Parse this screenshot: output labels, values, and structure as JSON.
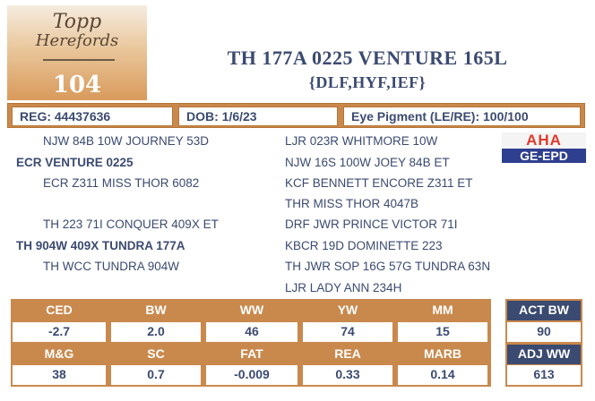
{
  "logo": {
    "line1": "Topp",
    "line2": "Herefords"
  },
  "lot_number": "104",
  "title": "TH 177A 0225 VENTURE 165L",
  "subtitle": "{DLF,HYF,IEF}",
  "info": {
    "reg": "REG: 44437636",
    "dob": "DOB: 1/6/23",
    "eye": "Eye Pigment (LE/RE): 100/100"
  },
  "pedigree": {
    "left": [
      "NJW 84B 10W JOURNEY 53D",
      "ECR VENTURE 0225",
      "ECR Z311 MISS THOR 6082",
      "TH 223 71I CONQUER 409X ET",
      "TH 904W 409X TUNDRA 177A",
      "TH WCC TUNDRA 904W"
    ],
    "right": [
      "LJR 023R WHITMORE 10W",
      "NJW 16S 100W JOEY 84B ET",
      "KCF BENNETT ENCORE Z311 ET",
      "THR MISS THOR 4047B",
      "DRF JWR PRINCE VICTOR 71I",
      "KBCR 19D DOMINETTE 223",
      "TH JWR SOP 16G 57G TUNDRA 63N",
      "LJR LADY ANN 234H"
    ]
  },
  "aha_logo": {
    "top": "AHA",
    "bottom": "GE-EPD"
  },
  "epd": {
    "row1_headers": [
      "CED",
      "BW",
      "WW",
      "YW",
      "MM"
    ],
    "row1_values": [
      "-2.7",
      "2.0",
      "46",
      "74",
      "15"
    ],
    "row2_headers": [
      "M&G",
      "SC",
      "FAT",
      "REA",
      "MARB"
    ],
    "row2_values": [
      "38",
      "0.7",
      "-0.009",
      "0.33",
      "0.14"
    ]
  },
  "actuals": {
    "act_bw_label": "ACT BW",
    "act_bw_value": "90",
    "adj_ww_label": "ADJ WW",
    "adj_ww_value": "613"
  },
  "colors": {
    "accent": "#c9894d",
    "navy": "#3b4a70"
  }
}
